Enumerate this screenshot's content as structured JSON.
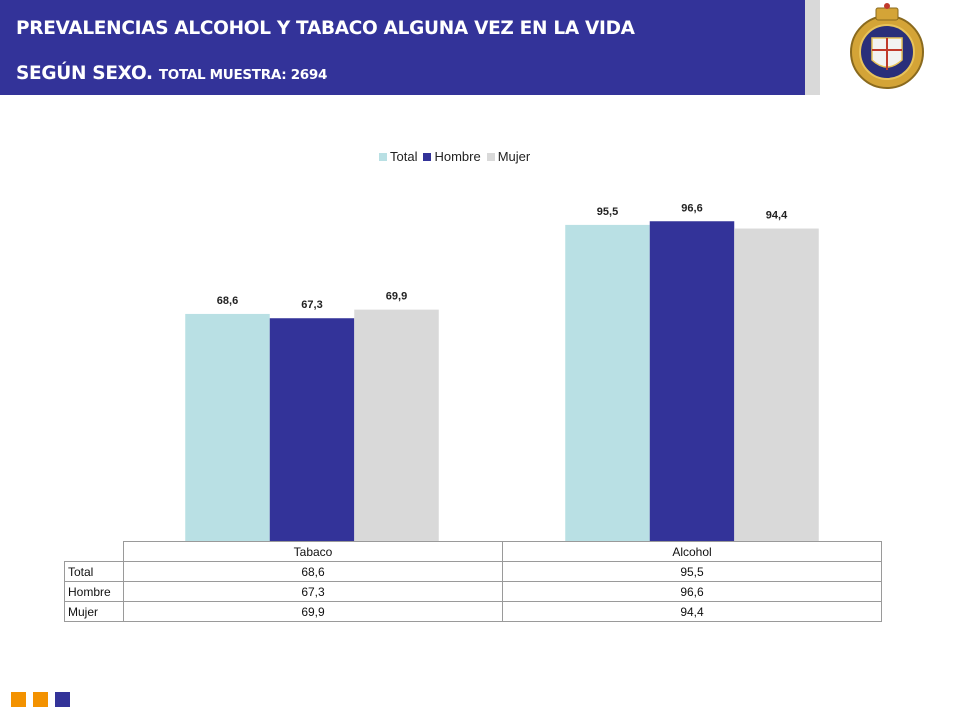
{
  "header": {
    "title_line1": "PREVALENCIAS ALCOHOL Y TABACO ALGUNA VEZ EN LA VIDA",
    "title_line2_main": "SEGÚN SEXO.",
    "title_line2_small": "TOTAL MUESTRA: 2694"
  },
  "colors": {
    "header_bg": "#333399",
    "total": "#b9e0e4",
    "hombre": "#333399",
    "mujer": "#d9d9d9",
    "footer_orange": "#f39200",
    "footer_blue": "#333399"
  },
  "chart_data": {
    "type": "bar",
    "categories": [
      "Tabaco",
      "Alcohol"
    ],
    "series": [
      {
        "name": "Total",
        "values": [
          68.6,
          95.5
        ],
        "labels": [
          "68,6",
          "95,5"
        ]
      },
      {
        "name": "Hombre",
        "values": [
          67.3,
          96.6
        ],
        "labels": [
          "67,3",
          "96,6"
        ]
      },
      {
        "name": "Mujer",
        "values": [
          69.9,
          94.4
        ],
        "labels": [
          "69,9",
          "94,4"
        ]
      }
    ],
    "title": "",
    "xlabel": "",
    "ylabel": "",
    "ylim": [
      0,
      100
    ],
    "legend": "top",
    "grid": false
  },
  "table": {
    "columns": [
      "Tabaco",
      "Alcohol"
    ],
    "rows": [
      {
        "label": "Total",
        "values": [
          "68,6",
          "95,5"
        ]
      },
      {
        "label": "Hombre",
        "values": [
          "67,3",
          "96,6"
        ]
      },
      {
        "label": "Mujer",
        "values": [
          "69,9",
          "94,4"
        ]
      }
    ]
  }
}
